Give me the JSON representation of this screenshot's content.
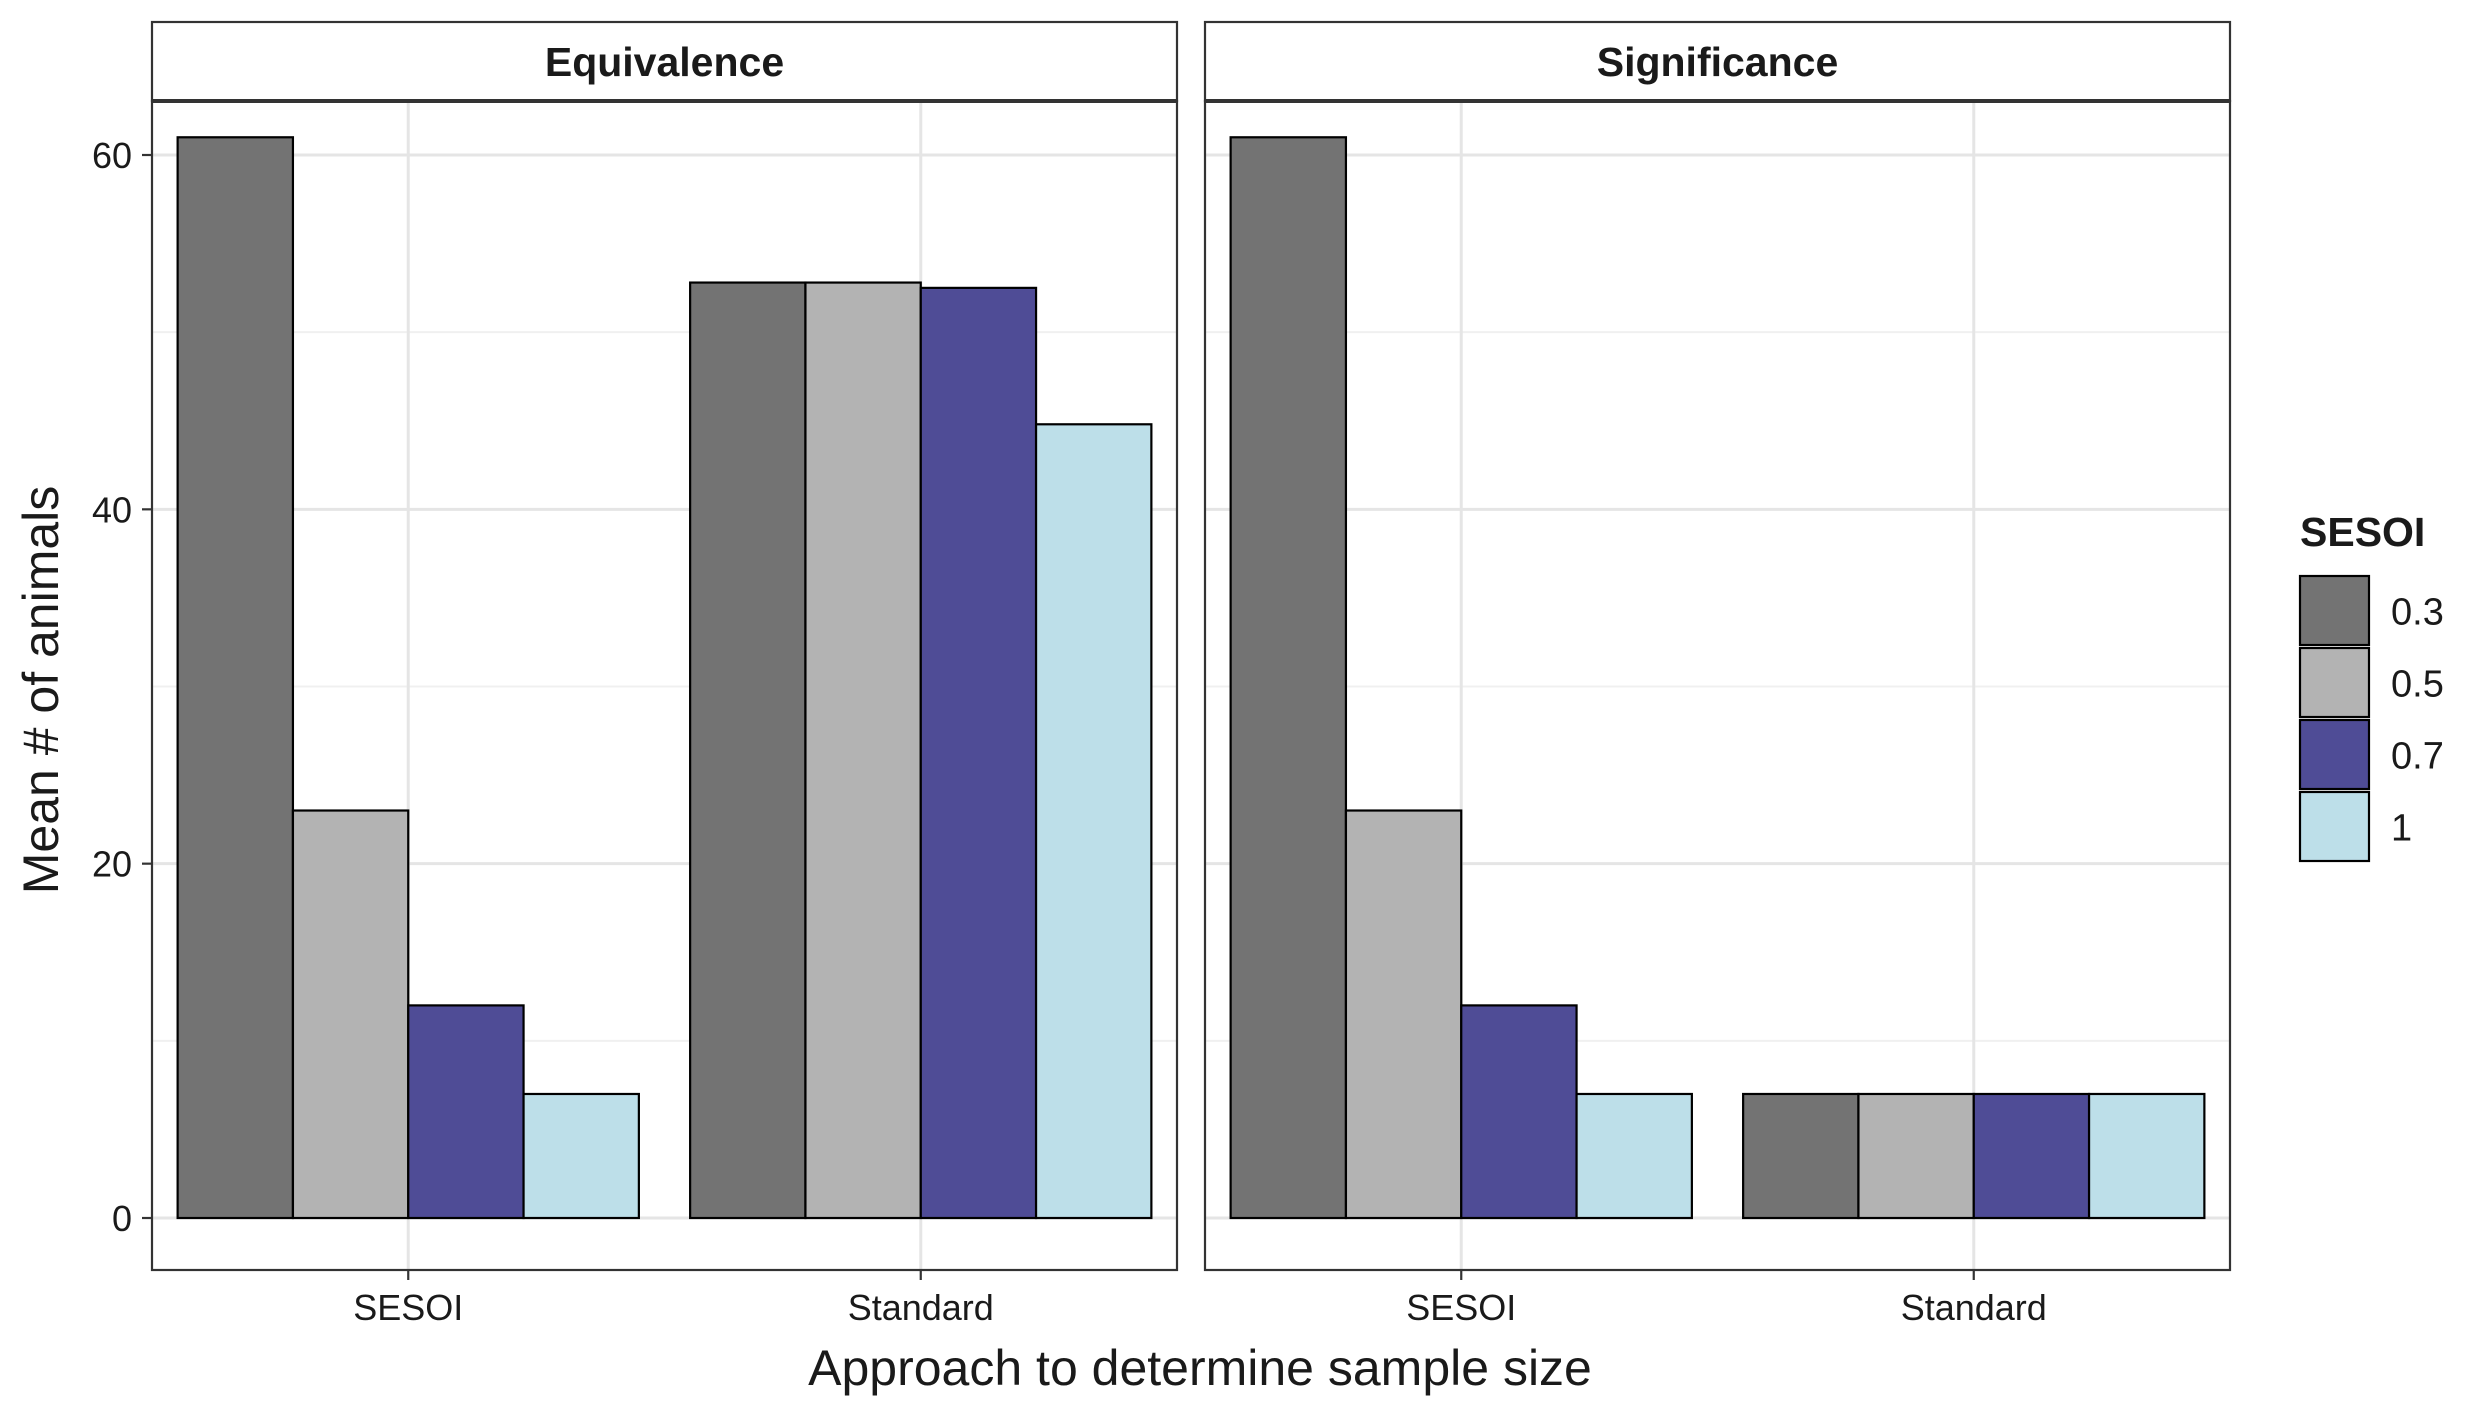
{
  "chart_data": {
    "type": "bar",
    "xlabel": "Approach to determine sample size",
    "ylabel": "Mean # of animals",
    "ylim": [
      -5,
      65
    ],
    "yticks": [
      0,
      20,
      40,
      60
    ],
    "grid": true,
    "legend": {
      "title": "SESOI",
      "placement": "right",
      "entries": [
        "0.3",
        "0.5",
        "0.7",
        "1"
      ]
    },
    "colors": {
      "0.3": "#737373",
      "0.5": "#b3b3b3",
      "0.7": "#4f4c96",
      "1": "#bddfe9"
    },
    "panels": [
      {
        "title": "Equivalence",
        "categories": [
          "SESOI",
          "Standard"
        ],
        "series": [
          {
            "name": "0.3",
            "values": [
              61,
              52.8
            ]
          },
          {
            "name": "0.5",
            "values": [
              23,
              52.8
            ]
          },
          {
            "name": "0.7",
            "values": [
              12,
              52.5
            ]
          },
          {
            "name": "1",
            "values": [
              7,
              44.8
            ]
          }
        ]
      },
      {
        "title": "Significance",
        "categories": [
          "SESOI",
          "Standard"
        ],
        "series": [
          {
            "name": "0.3",
            "values": [
              61,
              7
            ]
          },
          {
            "name": "0.5",
            "values": [
              23,
              7
            ]
          },
          {
            "name": "0.7",
            "values": [
              12,
              7
            ]
          },
          {
            "name": "1",
            "values": [
              7,
              7
            ]
          }
        ]
      }
    ]
  }
}
